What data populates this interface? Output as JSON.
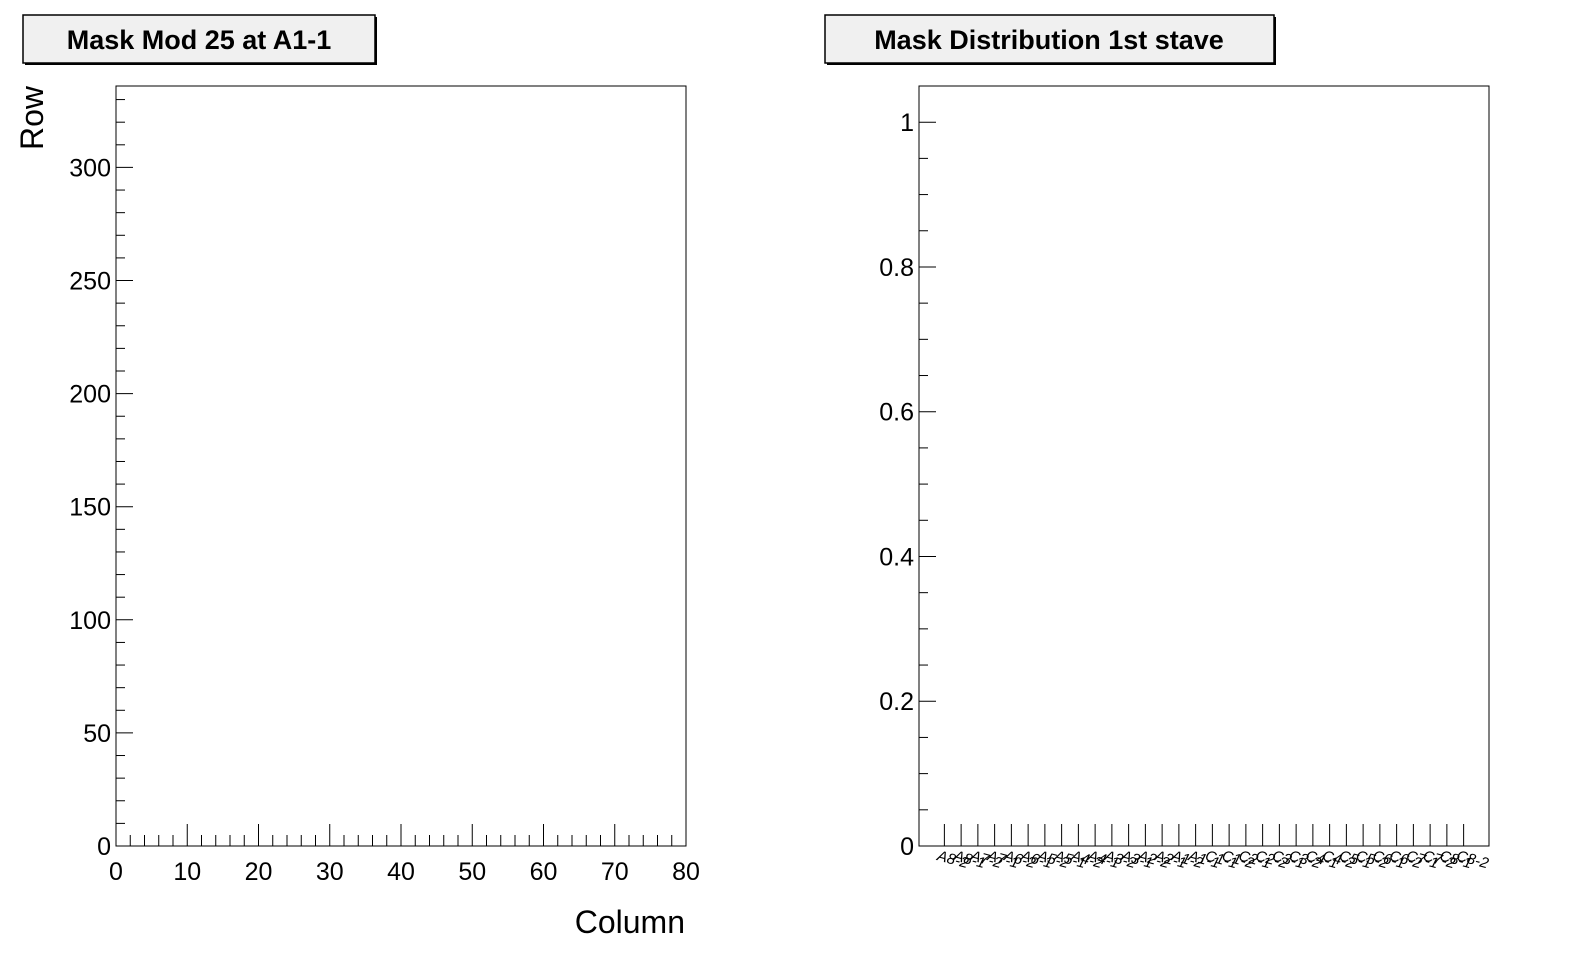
{
  "chart_data": [
    {
      "type": "heatmap",
      "title": "Mask Mod 25 at A1-1",
      "xlabel": "Column",
      "ylabel": "Row",
      "xlim": [
        0,
        80
      ],
      "ylim": [
        0,
        336
      ],
      "x_ticks": [
        0,
        10,
        20,
        30,
        40,
        50,
        60,
        70,
        80
      ],
      "y_ticks": [
        0,
        50,
        100,
        150,
        200,
        250,
        300
      ],
      "values": []
    },
    {
      "type": "bar",
      "title": "Mask Distribution 1st stave",
      "xlabel": "",
      "ylabel": "",
      "ylim": [
        0,
        1.05
      ],
      "y_ticks": [
        {
          "value": 0,
          "label": "0"
        },
        {
          "value": 0.2,
          "label": "0.2"
        },
        {
          "value": 0.4,
          "label": "0.4"
        },
        {
          "value": 0.6,
          "label": "0.6"
        },
        {
          "value": 0.8,
          "label": "0.8"
        },
        {
          "value": 1.0,
          "label": "1"
        }
      ],
      "categories": [
        "A8-2",
        "A8-1",
        "A7-2",
        "A7-1",
        "A6-2",
        "A6-1",
        "A5-2",
        "A5-1",
        "A4-2",
        "A4-1",
        "A3-2",
        "A3-1",
        "A2-2",
        "A2-1",
        "A1-2",
        "A1-1",
        "C1-1",
        "C1-2",
        "C2-1",
        "C2-2",
        "C3-1",
        "C3-2",
        "C4-1",
        "C4-2",
        "C5-1",
        "C5-2",
        "C6-1",
        "C6-2",
        "C7-1",
        "C7-2",
        "C8-1",
        "C8-2"
      ],
      "values": [
        0,
        0,
        0,
        0,
        0,
        0,
        0,
        0,
        0,
        0,
        0,
        0,
        0,
        0,
        0,
        0,
        0,
        0,
        0,
        0,
        0,
        0,
        0,
        0,
        0,
        0,
        0,
        0,
        0,
        0,
        0,
        0
      ]
    }
  ]
}
